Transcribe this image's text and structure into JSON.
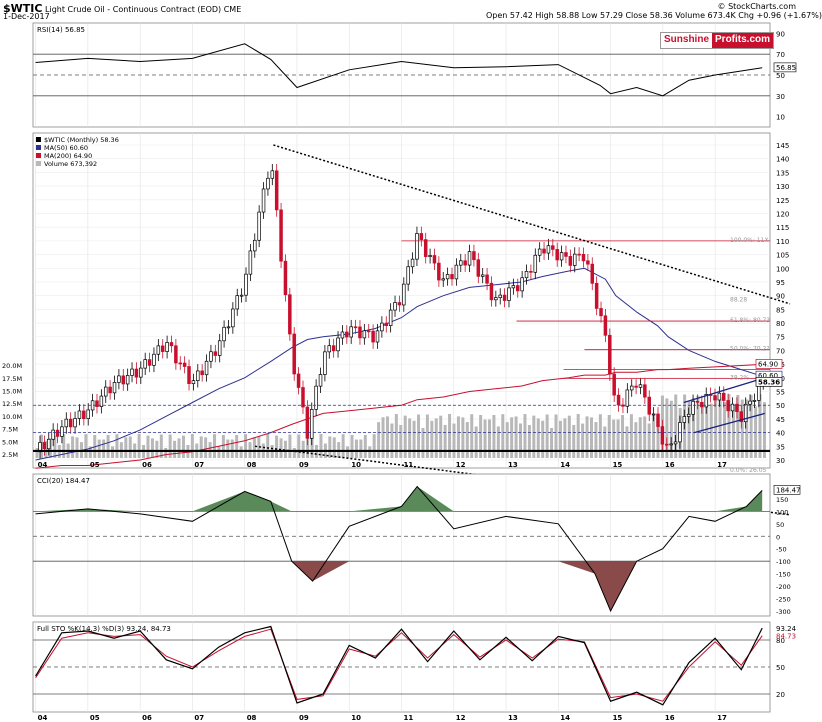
{
  "header": {
    "symbol": "$WTIC",
    "description": "Light Crude Oil - Continuous Contract (EOD)",
    "exchange": "CME",
    "date": "1-Dec-2017",
    "copyright": "© StockCharts.com",
    "ohlc": "Open 57.42  High 58.88  Low 57.29  Close 58.36  Volume 673.4K  Chg +0.96 (+1.67%)"
  },
  "logo": {
    "part1": "Sunshine",
    "part2": "Profits.com"
  },
  "colors": {
    "price_up": "#000000",
    "price_down": "#c8102e",
    "ma50": "#2e3192",
    "ma200": "#c8102e",
    "volume": "#b8b8b8",
    "fill_green": "#5a8a5a",
    "fill_red": "#8a4a4a",
    "stoch_d": "#c8102e",
    "label_blue": "#1a237e",
    "fib": "#c8102e"
  },
  "chart_data": [
    {
      "type": "line",
      "title": "RSI(14) 56.85",
      "panel": "rsi",
      "ylim": [
        0,
        100
      ],
      "ticks": [
        10,
        30,
        50,
        70,
        90
      ],
      "reference_lines": [
        30,
        50,
        70
      ],
      "last_value": 56.85,
      "x": [
        2004,
        2005,
        2006,
        2007,
        2008,
        2008.5,
        2009,
        2010,
        2011,
        2012,
        2013,
        2014,
        2014.8,
        2015,
        2015.5,
        2016,
        2016.5,
        2017,
        2017.9
      ],
      "values": [
        62,
        66,
        63,
        66,
        80,
        65,
        38,
        55,
        63,
        57,
        58,
        60,
        40,
        32,
        38,
        30,
        45,
        50,
        57
      ]
    },
    {
      "type": "line",
      "title": "$WTIC (Monthly) 58.36",
      "panel": "price",
      "legend": [
        {
          "name": "$WTIC (Monthly) 58.36",
          "color": "#000000"
        },
        {
          "name": "MA(50) 60.60",
          "color": "#2e3192"
        },
        {
          "name": "MA(200) 64.90",
          "color": "#c8102e"
        },
        {
          "name": "Volume 673,392",
          "color": "#b8b8b8"
        }
      ],
      "y_ticks": [
        30,
        35,
        40,
        45,
        50,
        55,
        60,
        65,
        70,
        75,
        80,
        85,
        90,
        95,
        100,
        105,
        110,
        115,
        120,
        125,
        130,
        135,
        140,
        145
      ],
      "volume_ticks": [
        "2.5M",
        "5.0M",
        "7.5M",
        "10.0M",
        "12.5M",
        "15.0M",
        "17.5M",
        "20.0M"
      ],
      "x_year_labels": [
        "04",
        "05",
        "06",
        "07",
        "08",
        "09",
        "10",
        "11",
        "12",
        "13",
        "14",
        "15",
        "16",
        "17"
      ],
      "x": [
        2004.0,
        2004.5,
        2005.0,
        2005.5,
        2006.0,
        2006.5,
        2007.0,
        2007.5,
        2008.0,
        2008.5,
        2008.9,
        2009.2,
        2009.5,
        2010.0,
        2010.5,
        2011.0,
        2011.3,
        2011.8,
        2012.3,
        2012.8,
        2013.3,
        2013.7,
        2014.2,
        2014.5,
        2014.9,
        2015.1,
        2015.5,
        2015.9,
        2016.1,
        2016.5,
        2017.0,
        2017.5,
        2017.9
      ],
      "close": [
        33,
        42,
        48,
        58,
        63,
        73,
        58,
        72,
        95,
        140,
        68,
        40,
        68,
        78,
        75,
        90,
        112,
        95,
        105,
        88,
        95,
        108,
        103,
        105,
        75,
        48,
        59,
        42,
        33,
        49,
        54,
        46,
        58.36
      ],
      "ma50": [
        30,
        32,
        34,
        37,
        41,
        46,
        51,
        56,
        60,
        66,
        71,
        74,
        75,
        76,
        78,
        82,
        86,
        90,
        93,
        94,
        95,
        97,
        99,
        100,
        96,
        90,
        84,
        79,
        75,
        70,
        66,
        63,
        60.6
      ],
      "ma200": [
        27,
        28,
        28,
        29,
        30,
        32,
        33,
        35,
        37,
        40,
        43,
        45,
        47,
        48,
        49,
        50,
        52,
        53,
        55,
        56,
        57,
        59,
        60,
        61,
        61,
        62,
        62,
        63,
        63,
        63.5,
        64,
        64.5,
        64.9
      ],
      "annotations": [
        {
          "label": "100.0%: 11X",
          "value": 110
        },
        {
          "label": "61.8%: 80.73",
          "value": 80.73
        },
        {
          "label": "50.0%: 70.2?",
          "value": 70.27
        },
        {
          "label": "38.2%",
          "value": 59.8
        },
        {
          "label": "64.90",
          "value": 64.9
        },
        {
          "label": "60.60",
          "value": 60.6
        },
        {
          "label": "58.36",
          "value": 58.36
        },
        {
          "label": "88.28",
          "value": 88.28
        },
        {
          "label": "0.0%: 26.05",
          "value": 26.05
        }
      ]
    },
    {
      "type": "line",
      "title": "CCI(20) 184.47",
      "panel": "cci",
      "ylim": [
        -320,
        250
      ],
      "ticks": [
        -300,
        -250,
        -200,
        -150,
        -100,
        -50,
        0,
        50,
        100,
        150,
        200
      ],
      "reference_lines": [
        -100,
        0,
        100
      ],
      "last_value": 184.47,
      "x": [
        2004,
        2005,
        2006,
        2007,
        2008,
        2008.5,
        2008.9,
        2009.3,
        2010,
        2011,
        2011.3,
        2012,
        2013,
        2014,
        2014.7,
        2015,
        2015.5,
        2016,
        2016.5,
        2017,
        2017.6,
        2017.9
      ],
      "values": [
        90,
        110,
        90,
        60,
        180,
        140,
        -100,
        -180,
        40,
        120,
        200,
        30,
        80,
        50,
        -150,
        -300,
        -100,
        -50,
        80,
        60,
        120,
        184
      ]
    },
    {
      "type": "line",
      "title": "Full STO %K(14,3) %D(3) 93.24, 84.73",
      "panel": "stoch",
      "ylim": [
        0,
        100
      ],
      "ticks": [
        20,
        50,
        80
      ],
      "reference_lines": [
        20,
        50,
        80
      ],
      "x": [
        2004,
        2004.5,
        2005,
        2005.5,
        2006,
        2006.5,
        2007,
        2007.5,
        2008,
        2008.5,
        2009,
        2009.5,
        2010,
        2010.5,
        2011,
        2011.5,
        2012,
        2012.5,
        2013,
        2013.5,
        2014,
        2014.5,
        2015,
        2015.5,
        2016,
        2016.5,
        2017,
        2017.5,
        2017.9
      ],
      "series": [
        {
          "name": "%K(14,3)",
          "values": [
            40,
            88,
            90,
            82,
            90,
            58,
            48,
            72,
            88,
            95,
            10,
            20,
            74,
            60,
            92,
            56,
            90,
            58,
            83,
            57,
            84,
            77,
            12,
            22,
            8,
            55,
            82,
            47,
            93.24
          ]
        },
        {
          "name": "%D(3)",
          "values": [
            38,
            82,
            88,
            84,
            86,
            62,
            50,
            68,
            84,
            92,
            14,
            18,
            70,
            62,
            88,
            60,
            86,
            61,
            80,
            60,
            81,
            78,
            16,
            20,
            12,
            50,
            78,
            52,
            84.73
          ]
        }
      ],
      "x_year_labels": [
        "04",
        "05",
        "06",
        "07",
        "08",
        "09",
        "10",
        "11",
        "12",
        "13",
        "14",
        "15",
        "16",
        "17"
      ]
    }
  ]
}
